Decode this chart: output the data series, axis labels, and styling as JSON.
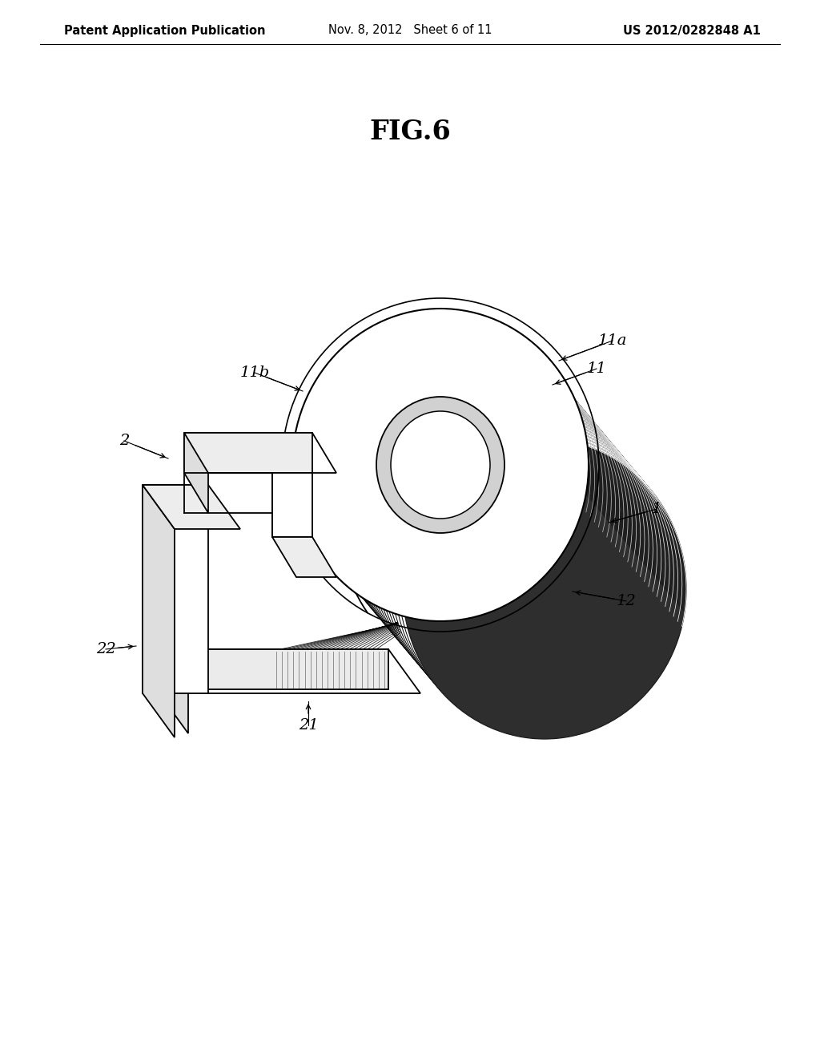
{
  "title": "FIG.6",
  "title_fontsize": 24,
  "title_fontweight": "bold",
  "header_left": "Patent Application Publication",
  "header_mid": "Nov. 8, 2012   Sheet 6 of 11",
  "header_right": "US 2012/0282848 A1",
  "header_fontsize": 10.5,
  "bg_color": "#ffffff",
  "line_color": "#000000"
}
